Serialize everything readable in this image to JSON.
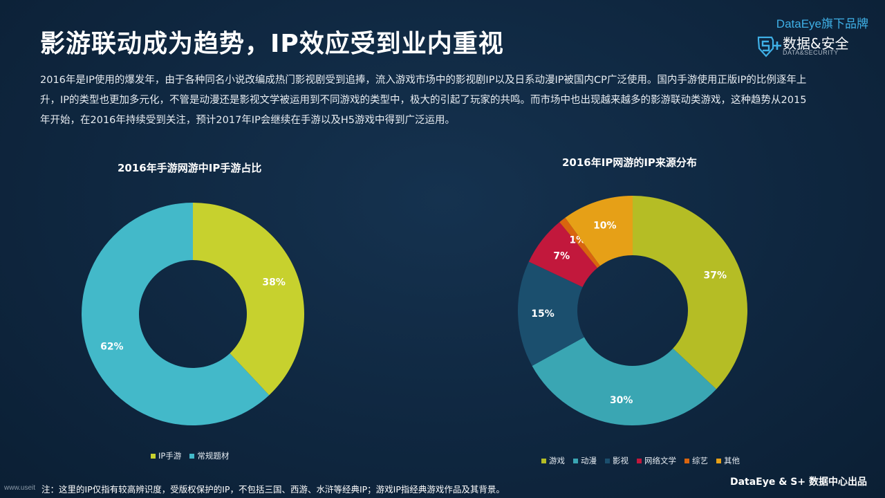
{
  "header": {
    "title": "影游联动成为趋势，IP效应受到业内重视"
  },
  "brand": {
    "tagline": "DataEye旗下品牌",
    "name": "数据&安全",
    "sub": "DATA&SECURITY",
    "logo_icon": "s-plus-shield-icon",
    "accent_color": "#3fb0e6"
  },
  "intro": {
    "paragraph": "2016年是IP使用的爆发年，由于各种同名小说改编成热门影视剧受到追捧，流入游戏市场中的影视剧IP以及日系动漫IP被国内CP广泛使用。国内手游使用正版IP的比例逐年上升，IP的类型也更加多元化，不管是动漫还是影视文学被运用到不同游戏的类型中，极大的引起了玩家的共鸣。而市场中也出现越来越多的影游联动类游戏，这种趋势从2015年开始，在2016年持续受到关注，预计2017年IP会继续在手游以及H5游戏中得到广泛运用。"
  },
  "chart_data": [
    {
      "type": "pie",
      "donut": true,
      "title": "2016年手游网游中IP手游占比",
      "legend_position": "bottom",
      "categories": [
        "IP手游",
        "常规题材"
      ],
      "values": [
        38,
        62
      ],
      "labels": [
        "38%",
        "62%"
      ],
      "colors": [
        "#c7d12e",
        "#43b9c9"
      ]
    },
    {
      "type": "pie",
      "donut": true,
      "title": "2016年IP网游的IP来源分布",
      "legend_position": "bottom",
      "categories": [
        "游戏",
        "动漫",
        "影视",
        "网络文学",
        "综艺",
        "其他"
      ],
      "values": [
        37,
        30,
        15,
        7,
        1,
        10
      ],
      "labels": [
        "37%",
        "30%",
        "15%",
        "7%",
        "1%",
        "10%"
      ],
      "colors": [
        "#b5bd25",
        "#3aa6b3",
        "#1b4f6e",
        "#c2183c",
        "#d9650f",
        "#e6a017"
      ]
    }
  ],
  "footer": {
    "note": "注：这里的IP仅指有较高辨识度，受版权保护的IP，不包括三国、西游、水浒等经典IP；游戏IP指经典游戏作品及其背景。",
    "credit": "DataEye & S+ 数据中心出品",
    "watermark": "www.useit"
  }
}
